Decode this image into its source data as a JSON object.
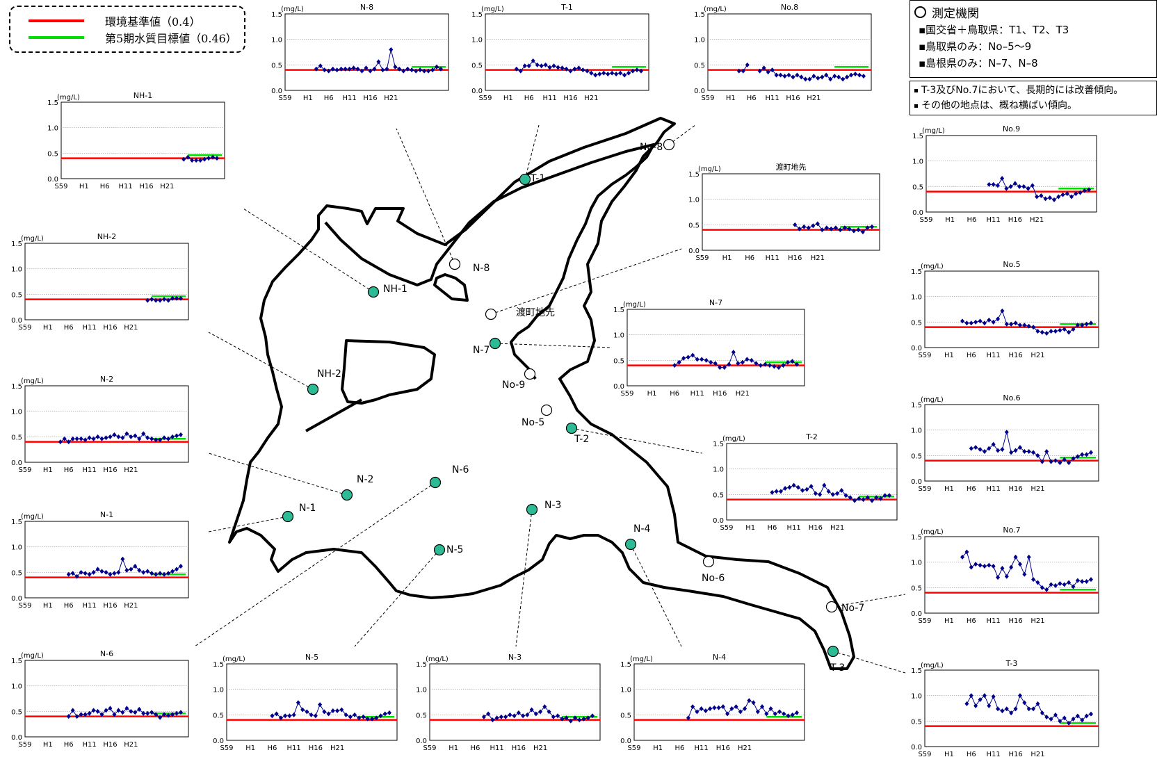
{
  "legend": {
    "items": [
      {
        "label": "環境基準値（0.4）",
        "color": "#ff0000"
      },
      {
        "label": "第5期水質目標値（0.46）",
        "color": "#00dd00"
      }
    ]
  },
  "info": {
    "title": "測定機関",
    "lines": [
      "▪国交省＋鳥取県：T1、T2、T3",
      "▪鳥取県のみ：No–5～9",
      "▪島根県のみ：N–7、N–8"
    ]
  },
  "notes": [
    "T-3及びNo.7において、長期的には改善傾向。",
    "その他の地点は、概ね横ばい傾向。"
  ],
  "colors": {
    "series": "#00008b",
    "standard": "#ff0000",
    "target": "#00dd00",
    "station_filled": "#2dbb96"
  },
  "stations": [
    {
      "label": "T-1",
      "filled": true
    },
    {
      "label": "No-8",
      "filled": false
    },
    {
      "label": "N-8",
      "filled": false
    },
    {
      "label": "渡町地先",
      "filled": false
    },
    {
      "label": "NH-1",
      "filled": true
    },
    {
      "label": "N-7",
      "filled": true
    },
    {
      "label": "No-9",
      "filled": false
    },
    {
      "label": "NH-2",
      "filled": true
    },
    {
      "label": "No-5",
      "filled": false
    },
    {
      "label": "T-2",
      "filled": true
    },
    {
      "label": "N-6",
      "filled": true
    },
    {
      "label": "N-2",
      "filled": true
    },
    {
      "label": "N-1",
      "filled": true
    },
    {
      "label": "N-3",
      "filled": true
    },
    {
      "label": "N-5",
      "filled": true
    },
    {
      "label": "N-4",
      "filled": true
    },
    {
      "label": "No-6",
      "filled": false
    },
    {
      "label": "No-7",
      "filled": false
    },
    {
      "label": "T-3",
      "filled": true
    }
  ],
  "chart_data": [
    {
      "type": "line",
      "title": "N-8",
      "ylabel": "(mg/L)",
      "x_ticks": [
        "S59",
        "H1",
        "H6",
        "H11",
        "H16",
        "H21"
      ],
      "y_ticks": [
        "0.0",
        "0.5",
        "1.0",
        "1.5"
      ],
      "ylim": [
        0,
        1.5
      ],
      "standard": 0.4,
      "target": 0.46,
      "x_start": 1984,
      "values": [
        0.42,
        0.48,
        0.4,
        0.38,
        0.42,
        0.4,
        0.42,
        0.42,
        0.42,
        0.44,
        0.42,
        0.38,
        0.44,
        0.38,
        0.42,
        0.56,
        0.4,
        0.42,
        0.8,
        0.46,
        0.42,
        0.38,
        0.42,
        0.4,
        0.38,
        0.4,
        0.38,
        0.38,
        0.4,
        0.46,
        0.42
      ]
    },
    {
      "type": "line",
      "title": "T-1",
      "ylabel": "(mg/L)",
      "x_ticks": [
        "S59",
        "H1",
        "H6",
        "H11",
        "H16",
        "H21"
      ],
      "y_ticks": [
        "0.0",
        "0.5",
        "1.0",
        "1.5"
      ],
      "ylim": [
        0,
        1.5
      ],
      "standard": 0.4,
      "target": 0.46,
      "x_start": 1984,
      "values": [
        0.42,
        0.38,
        0.48,
        0.48,
        0.58,
        0.5,
        0.48,
        0.5,
        0.45,
        0.48,
        0.45,
        0.44,
        0.42,
        0.38,
        0.42,
        0.44,
        0.4,
        0.38,
        0.34,
        0.3,
        0.32,
        0.34,
        0.32,
        0.34,
        0.32,
        0.34,
        0.3,
        0.34,
        0.38,
        0.4,
        0.38
      ]
    },
    {
      "type": "line",
      "title": "No.8",
      "ylabel": "(mg/L)",
      "x_ticks": [
        "S59",
        "H1",
        "H6",
        "H11",
        "H16",
        "H21"
      ],
      "y_ticks": [
        "0.0",
        "0.5",
        "1.0",
        "1.5"
      ],
      "ylim": [
        0,
        1.5
      ],
      "standard": 0.4,
      "target": 0.46,
      "x_start": 1984,
      "values": [
        0.38,
        0.38,
        0.5,
        null,
        null,
        0.38,
        0.44,
        0.36,
        0.4,
        0.3,
        0.3,
        0.28,
        0.3,
        0.26,
        0.3,
        0.26,
        0.22,
        0.22,
        0.28,
        0.24,
        0.26,
        0.3,
        0.22,
        0.28,
        0.26,
        0.22,
        0.26,
        0.3,
        0.32,
        0.3,
        0.28
      ]
    },
    {
      "type": "line",
      "title": "NH-1",
      "ylabel": "(mg/L)",
      "x_ticks": [
        "S59",
        "H1",
        "H6",
        "H11",
        "H16",
        "H21"
      ],
      "y_ticks": [
        "0.0",
        "0.5",
        "1.0",
        "1.5"
      ],
      "ylim": [
        0,
        1.5
      ],
      "standard": 0.4,
      "target": 0.46,
      "x_start": 1984,
      "values": [
        null,
        null,
        null,
        null,
        null,
        null,
        null,
        null,
        null,
        null,
        null,
        null,
        null,
        null,
        null,
        null,
        null,
        null,
        null,
        null,
        null,
        null,
        null,
        null,
        0.38,
        0.42,
        0.36,
        0.36,
        0.36,
        0.38,
        0.4,
        0.42,
        0.4
      ]
    },
    {
      "type": "line",
      "title": "NH-2",
      "ylabel": "(mg/L)",
      "x_ticks": [
        "S59",
        "H1",
        "H6",
        "H11",
        "H16",
        "H21"
      ],
      "y_ticks": [
        "0.0",
        "0.5",
        "1.0",
        "1.5"
      ],
      "ylim": [
        0,
        1.5
      ],
      "standard": 0.4,
      "target": 0.46,
      "x_start": 1984,
      "values": [
        null,
        null,
        null,
        null,
        null,
        null,
        null,
        null,
        null,
        null,
        null,
        null,
        null,
        null,
        null,
        null,
        null,
        null,
        null,
        null,
        null,
        null,
        null,
        null,
        0.38,
        0.4,
        0.38,
        0.38,
        0.4,
        0.38,
        0.42,
        0.42,
        0.42
      ]
    },
    {
      "type": "line",
      "title": "N-2",
      "ylabel": "(mg/L)",
      "x_ticks": [
        "S59",
        "H1",
        "H6",
        "H11",
        "H16",
        "H21"
      ],
      "y_ticks": [
        "0.0",
        "0.5",
        "1.0",
        "1.5"
      ],
      "ylim": [
        0,
        1.5
      ],
      "standard": 0.4,
      "target": 0.46,
      "x_start": 1984,
      "values": [
        0.4,
        0.46,
        0.4,
        0.46,
        0.46,
        0.46,
        0.44,
        0.48,
        0.46,
        0.5,
        0.46,
        0.48,
        0.5,
        0.54,
        0.5,
        0.48,
        0.56,
        0.5,
        0.52,
        0.46,
        0.56,
        0.48,
        0.46,
        0.44,
        0.44,
        0.48,
        0.46,
        0.5,
        0.52,
        0.54
      ]
    },
    {
      "type": "line",
      "title": "N-1",
      "ylabel": "(mg/L)",
      "x_ticks": [
        "S59",
        "H1",
        "H6",
        "H11",
        "H16",
        "H21"
      ],
      "y_ticks": [
        "0.0",
        "0.5",
        "1.0",
        "1.5"
      ],
      "ylim": [
        0,
        1.5
      ],
      "standard": 0.4,
      "target": 0.46,
      "x_start": 1984,
      "values": [
        0.46,
        0.48,
        0.42,
        0.5,
        0.48,
        0.46,
        0.5,
        0.56,
        0.52,
        0.5,
        0.46,
        0.48,
        0.5,
        0.76,
        0.54,
        0.56,
        0.62,
        0.54,
        0.5,
        0.52,
        0.48,
        0.46,
        0.48,
        0.46,
        0.48,
        0.52,
        0.56,
        0.62
      ]
    },
    {
      "type": "line",
      "title": "N-6",
      "ylabel": "(mg/L)",
      "x_ticks": [
        "S59",
        "H1",
        "H6",
        "H11",
        "H16",
        "H21"
      ],
      "y_ticks": [
        "0.0",
        "0.5",
        "1.0",
        "1.5"
      ],
      "ylim": [
        0,
        1.5
      ],
      "standard": 0.4,
      "target": 0.46,
      "x_start": 1984,
      "values": [
        0.4,
        0.52,
        0.4,
        0.44,
        0.44,
        0.46,
        0.52,
        0.5,
        0.44,
        0.52,
        0.56,
        0.44,
        0.52,
        0.48,
        0.56,
        0.5,
        0.48,
        0.54,
        0.46,
        0.46,
        0.48,
        0.44,
        0.38,
        0.44,
        0.42,
        0.44,
        0.46,
        0.48
      ]
    },
    {
      "type": "line",
      "title": "N-5",
      "ylabel": "(mg/L)",
      "x_ticks": [
        "S59",
        "H1",
        "H6",
        "H11",
        "H16",
        "H21"
      ],
      "y_ticks": [
        "0.0",
        "0.5",
        "1.0",
        "1.5"
      ],
      "ylim": [
        0,
        1.5
      ],
      "standard": 0.4,
      "target": 0.46,
      "x_start": 1984,
      "values": [
        0.48,
        0.52,
        0.44,
        0.48,
        0.48,
        0.5,
        0.74,
        0.6,
        0.56,
        0.5,
        0.48,
        0.7,
        0.56,
        0.52,
        0.58,
        0.58,
        0.6,
        0.5,
        0.46,
        0.5,
        0.44,
        0.46,
        0.42,
        0.42,
        0.44,
        0.48,
        0.52,
        0.54
      ]
    },
    {
      "type": "line",
      "title": "N-3",
      "ylabel": "(mg/L)",
      "x_ticks": [
        "S59",
        "H1",
        "H6",
        "H11",
        "H16",
        "H21"
      ],
      "y_ticks": [
        "0.0",
        "0.5",
        "1.0",
        "1.5"
      ],
      "ylim": [
        0,
        1.5
      ],
      "standard": 0.4,
      "target": 0.46,
      "x_start": 1984,
      "values": [
        0.46,
        0.52,
        0.4,
        0.44,
        0.46,
        0.46,
        0.5,
        0.48,
        0.54,
        0.48,
        0.5,
        0.6,
        0.52,
        0.56,
        0.66,
        0.56,
        0.46,
        0.48,
        0.42,
        0.44,
        0.38,
        0.44,
        0.4,
        0.42,
        0.44,
        0.48
      ]
    },
    {
      "type": "line",
      "title": "N-4",
      "ylabel": "(mg/L)",
      "x_ticks": [
        "S59",
        "H1",
        "H6",
        "H11",
        "H16",
        "H21"
      ],
      "y_ticks": [
        "0.0",
        "0.5",
        "1.0",
        "1.5"
      ],
      "ylim": [
        0,
        1.5
      ],
      "standard": 0.4,
      "target": 0.46,
      "x_start": 1984,
      "values": [
        0.44,
        0.66,
        0.56,
        0.62,
        0.58,
        0.62,
        0.64,
        0.64,
        0.66,
        0.52,
        0.62,
        0.66,
        0.56,
        0.62,
        0.78,
        0.74,
        0.56,
        0.66,
        0.52,
        0.62,
        0.52,
        0.56,
        0.52,
        0.48,
        0.5,
        0.54
      ]
    },
    {
      "type": "line",
      "title": "No.9",
      "ylabel": "(mg/L)",
      "x_ticks": [
        "S59",
        "H1",
        "H6",
        "H11",
        "H16",
        "H21"
      ],
      "y_ticks": [
        "0.0",
        "0.5",
        "1.0",
        "1.5"
      ],
      "ylim": [
        0,
        1.5
      ],
      "standard": 0.4,
      "target": 0.46,
      "x_start": 1984,
      "values": [
        null,
        null,
        null,
        null,
        null,
        null,
        0.54,
        0.54,
        0.52,
        0.66,
        0.46,
        0.5,
        0.56,
        0.5,
        0.5,
        0.46,
        0.52,
        0.3,
        0.32,
        0.26,
        0.28,
        0.24,
        0.3,
        0.34,
        0.36,
        0.3,
        0.36,
        0.38,
        0.42,
        0.44
      ]
    },
    {
      "type": "line",
      "title": "渡町地先",
      "ylabel": "(mg/L)",
      "x_ticks": [
        "S59",
        "H1",
        "H6",
        "H11",
        "H16",
        "H21"
      ],
      "y_ticks": [
        "0.0",
        "0.5",
        "1.0",
        "1.5"
      ],
      "ylim": [
        0,
        1.5
      ],
      "standard": 0.4,
      "target": 0.46,
      "x_start": 1984,
      "values": [
        null,
        null,
        null,
        null,
        null,
        null,
        null,
        null,
        null,
        null,
        null,
        null,
        0.5,
        0.42,
        0.46,
        0.44,
        0.48,
        0.52,
        0.4,
        0.44,
        0.42,
        0.44,
        0.4,
        0.44,
        0.42,
        0.38,
        0.4,
        0.36,
        0.44,
        0.46
      ]
    },
    {
      "type": "line",
      "title": "N-7",
      "ylabel": "(mg/L)",
      "x_ticks": [
        "S59",
        "H1",
        "H6",
        "H11",
        "H16",
        "H21"
      ],
      "y_ticks": [
        "0.0",
        "0.5",
        "1.0",
        "1.5"
      ],
      "ylim": [
        0,
        1.5
      ],
      "standard": 0.4,
      "target": 0.46,
      "x_start": 1984,
      "values": [
        0.4,
        0.46,
        0.54,
        0.56,
        0.6,
        0.52,
        0.52,
        0.5,
        0.46,
        0.44,
        0.36,
        0.36,
        0.42,
        0.66,
        0.44,
        0.46,
        0.52,
        0.5,
        0.44,
        0.4,
        0.42,
        0.4,
        0.38,
        0.36,
        0.4,
        0.46,
        0.48,
        0.42
      ]
    },
    {
      "type": "line",
      "title": "No.5",
      "ylabel": "(mg/L)",
      "x_ticks": [
        "S59",
        "H1",
        "H6",
        "H11",
        "H16",
        "H21"
      ],
      "y_ticks": [
        "0.0",
        "0.5",
        "1.0",
        "1.5"
      ],
      "ylim": [
        0,
        1.5
      ],
      "standard": 0.4,
      "target": 0.46,
      "x_start": 1984,
      "values": [
        0.52,
        0.48,
        0.48,
        0.5,
        0.52,
        0.48,
        0.54,
        0.5,
        0.56,
        0.72,
        0.46,
        0.46,
        0.48,
        0.44,
        0.44,
        0.42,
        0.4,
        0.32,
        0.3,
        0.28,
        0.32,
        0.32,
        0.34,
        0.36,
        0.3,
        0.36,
        0.44,
        0.44,
        0.46,
        0.48
      ]
    },
    {
      "type": "line",
      "title": "T-2",
      "ylabel": "(mg/L)",
      "x_ticks": [
        "S59",
        "H1",
        "H6",
        "H11",
        "H16",
        "H21"
      ],
      "y_ticks": [
        "0.0",
        "0.5",
        "1.0",
        "1.5"
      ],
      "ylim": [
        0,
        1.5
      ],
      "standard": 0.4,
      "target": 0.46,
      "x_start": 1984,
      "values": [
        0.54,
        0.56,
        0.56,
        0.62,
        0.64,
        0.68,
        0.64,
        0.58,
        0.6,
        0.66,
        0.52,
        0.5,
        0.68,
        0.56,
        0.5,
        0.52,
        0.58,
        0.48,
        0.44,
        0.38,
        0.42,
        0.4,
        0.44,
        0.38,
        0.44,
        0.42,
        0.48,
        0.48
      ]
    },
    {
      "type": "line",
      "title": "No.6",
      "ylabel": "(mg/L)",
      "x_ticks": [
        "S59",
        "H1",
        "H6",
        "H11",
        "H16",
        "H21"
      ],
      "y_ticks": [
        "0.0",
        "0.5",
        "1.0",
        "1.5"
      ],
      "ylim": [
        0,
        1.5
      ],
      "standard": 0.4,
      "target": 0.46,
      "x_start": 1984,
      "values": [
        0.64,
        0.66,
        0.62,
        0.58,
        0.64,
        0.72,
        0.6,
        0.62,
        0.96,
        0.56,
        0.6,
        0.66,
        0.58,
        0.58,
        0.56,
        0.5,
        0.38,
        0.58,
        0.38,
        0.4,
        0.36,
        0.42,
        0.36,
        0.44,
        0.48,
        0.52,
        0.52,
        0.56
      ]
    },
    {
      "type": "line",
      "title": "No.7",
      "ylabel": "(mg/L)",
      "x_ticks": [
        "S59",
        "H1",
        "H6",
        "H11",
        "H16",
        "H21"
      ],
      "y_ticks": [
        "0.0",
        "0.5",
        "1.0",
        "1.5"
      ],
      "ylim": [
        0,
        1.5
      ],
      "standard": 0.4,
      "target": 0.46,
      "x_start": 1984,
      "values": [
        1.1,
        1.2,
        0.9,
        0.96,
        0.94,
        0.92,
        0.94,
        0.92,
        0.7,
        0.88,
        0.72,
        0.9,
        1.1,
        0.96,
        0.76,
        1.1,
        0.66,
        0.6,
        0.5,
        0.46,
        0.56,
        0.54,
        0.58,
        0.56,
        0.6,
        0.52,
        0.64,
        0.62,
        0.62,
        0.66
      ]
    },
    {
      "type": "line",
      "title": "T-3",
      "ylabel": "(mg/L)",
      "x_ticks": [
        "S59",
        "H1",
        "H6",
        "H11",
        "H16",
        "H21"
      ],
      "y_ticks": [
        "0.0",
        "0.5",
        "1.0",
        "1.5"
      ],
      "ylim": [
        0,
        1.5
      ],
      "standard": 0.4,
      "target": 0.46,
      "x_start": 1984,
      "values": [
        0.84,
        1.0,
        0.8,
        0.92,
        1.0,
        0.8,
        0.98,
        0.74,
        0.7,
        0.74,
        0.66,
        0.74,
        1.0,
        0.86,
        0.74,
        0.74,
        0.84,
        0.66,
        0.58,
        0.54,
        0.62,
        0.5,
        0.56,
        0.46,
        0.54,
        0.6,
        0.52,
        0.6,
        0.64
      ]
    }
  ]
}
